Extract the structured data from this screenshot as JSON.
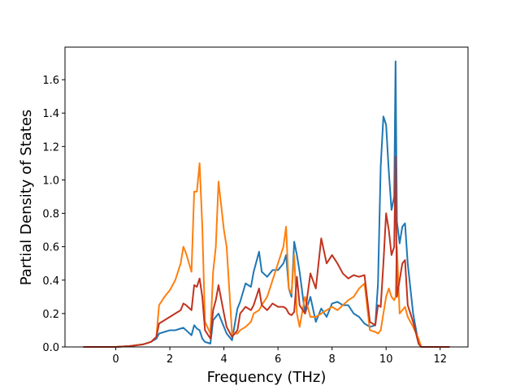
{
  "chart_data": {
    "type": "line",
    "xlabel": "Frequency (THz)",
    "ylabel": "Partial Density of States",
    "x": [
      -1.2,
      -0.5,
      0,
      0.5,
      1.0,
      1.3,
      1.5,
      1.6,
      1.8,
      2.0,
      2.2,
      2.4,
      2.5,
      2.6,
      2.8,
      2.9,
      3.0,
      3.1,
      3.2,
      3.3,
      3.5,
      3.6,
      3.7,
      3.8,
      4.0,
      4.1,
      4.3,
      4.5,
      4.6,
      4.8,
      5.0,
      5.1,
      5.3,
      5.4,
      5.6,
      5.8,
      6.0,
      6.2,
      6.3,
      6.4,
      6.5,
      6.6,
      6.7,
      6.8,
      7.0,
      7.2,
      7.4,
      7.6,
      7.8,
      8.0,
      8.2,
      8.4,
      8.6,
      8.8,
      9.0,
      9.2,
      9.4,
      9.6,
      9.7,
      9.8,
      9.9,
      10.0,
      10.1,
      10.2,
      10.3,
      10.35,
      10.4,
      10.5,
      10.6,
      10.7,
      10.8,
      11.0,
      11.2,
      11.3,
      11.8,
      12.35
    ],
    "series": [
      {
        "color": "#1f77b4",
        "values": [
          0,
          0,
          0,
          0.005,
          0.015,
          0.03,
          0.05,
          0.08,
          0.09,
          0.1,
          0.1,
          0.11,
          0.115,
          0.1,
          0.07,
          0.13,
          0.11,
          0.1,
          0.05,
          0.03,
          0.02,
          0.16,
          0.18,
          0.2,
          0.12,
          0.08,
          0.04,
          0.23,
          0.27,
          0.38,
          0.36,
          0.45,
          0.57,
          0.45,
          0.42,
          0.46,
          0.46,
          0.5,
          0.55,
          0.35,
          0.3,
          0.63,
          0.55,
          0.45,
          0.2,
          0.3,
          0.15,
          0.23,
          0.18,
          0.26,
          0.27,
          0.25,
          0.25,
          0.2,
          0.18,
          0.14,
          0.12,
          0.13,
          0.38,
          1.08,
          1.38,
          1.33,
          1.05,
          0.82,
          0.9,
          1.71,
          0.75,
          0.62,
          0.72,
          0.74,
          0.5,
          0.2,
          0.02,
          0,
          0,
          0
        ]
      },
      {
        "color": "#ff7f0e",
        "values": [
          0,
          0,
          0,
          0.005,
          0.015,
          0.03,
          0.06,
          0.25,
          0.3,
          0.34,
          0.4,
          0.5,
          0.6,
          0.56,
          0.45,
          0.93,
          0.93,
          1.1,
          0.72,
          0.15,
          0.08,
          0.45,
          0.6,
          0.99,
          0.7,
          0.6,
          0.08,
          0.08,
          0.1,
          0.12,
          0.15,
          0.2,
          0.22,
          0.25,
          0.3,
          0.4,
          0.5,
          0.6,
          0.72,
          0.35,
          0.32,
          0.55,
          0.2,
          0.12,
          0.3,
          0.18,
          0.18,
          0.2,
          0.22,
          0.24,
          0.22,
          0.25,
          0.28,
          0.3,
          0.35,
          0.38,
          0.1,
          0.09,
          0.08,
          0.1,
          0.2,
          0.3,
          0.35,
          0.3,
          0.28,
          0.3,
          0.6,
          0.2,
          0.22,
          0.24,
          0.18,
          0.12,
          0.05,
          0,
          0,
          0
        ]
      },
      {
        "color": "#c1331f",
        "values": [
          0,
          0,
          0,
          0.005,
          0.015,
          0.03,
          0.06,
          0.14,
          0.16,
          0.18,
          0.2,
          0.22,
          0.26,
          0.25,
          0.22,
          0.37,
          0.36,
          0.41,
          0.3,
          0.1,
          0.05,
          0.22,
          0.28,
          0.37,
          0.2,
          0.12,
          0.06,
          0.1,
          0.2,
          0.24,
          0.22,
          0.25,
          0.35,
          0.25,
          0.22,
          0.26,
          0.24,
          0.24,
          0.23,
          0.2,
          0.19,
          0.21,
          0.42,
          0.25,
          0.2,
          0.44,
          0.35,
          0.65,
          0.5,
          0.55,
          0.5,
          0.44,
          0.41,
          0.43,
          0.42,
          0.43,
          0.15,
          0.13,
          0.25,
          0.24,
          0.5,
          0.8,
          0.7,
          0.55,
          0.6,
          1.14,
          0.3,
          0.4,
          0.5,
          0.52,
          0.25,
          0.15,
          0.02,
          0,
          0,
          0
        ]
      }
    ],
    "xlim": [
      -1.88,
      13.03
    ],
    "xticks": [
      0,
      2,
      4,
      6,
      8,
      10,
      12
    ],
    "ylim": [
      0,
      1.795
    ],
    "yticks": [
      {
        "value": 0,
        "label": "0.0"
      },
      0.2,
      0.4,
      0.6,
      0.8,
      {
        "value": 1,
        "label": "1.0"
      },
      1.2,
      1.4,
      1.6
    ]
  }
}
